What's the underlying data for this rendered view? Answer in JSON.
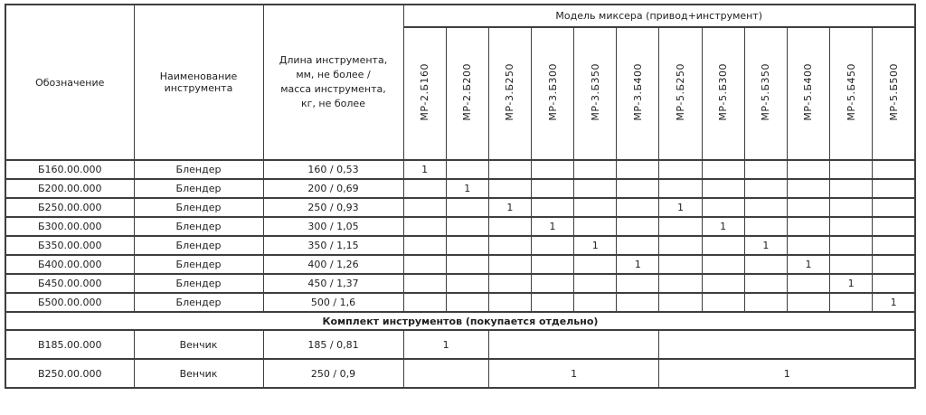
{
  "table": {
    "headers": {
      "designation": "Обозначение",
      "instrument_name": "Наименование инструмента",
      "length_mass": "Длина инструмента,\nмм, не более /\nмасса инструмента,\nкг, не более",
      "mixer_model_group": "Модель миксера (привод+инструмент)",
      "models": [
        "МР-2.Б160",
        "МР-2.Б200",
        "МР-3.Б250",
        "МР-3.Б300",
        "МР-3.Б350",
        "МР-3.Б400",
        "МР-5.Б250",
        "МР-5.Б300",
        "МР-5.Б350",
        "МР-5.Б400",
        "МР-5.Б450",
        "МР-5.Б500"
      ]
    },
    "blender_rows": [
      {
        "code": "Б160.00.000",
        "name": "Блендер",
        "size": "160 / 0,53",
        "marks": [
          "1",
          "",
          "",
          "",
          "",
          "",
          "",
          "",
          "",
          "",
          "",
          ""
        ]
      },
      {
        "code": "Б200.00.000",
        "name": "Блендер",
        "size": "200 / 0,69",
        "marks": [
          "",
          "1",
          "",
          "",
          "",
          "",
          "",
          "",
          "",
          "",
          "",
          ""
        ]
      },
      {
        "code": "Б250.00.000",
        "name": "Блендер",
        "size": "250 / 0,93",
        "marks": [
          "",
          "",
          "1",
          "",
          "",
          "",
          "1",
          "",
          "",
          "",
          "",
          ""
        ]
      },
      {
        "code": "Б300.00.000",
        "name": "Блендер",
        "size": "300 / 1,05",
        "marks": [
          "",
          "",
          "",
          "1",
          "",
          "",
          "",
          "1",
          "",
          "",
          "",
          ""
        ]
      },
      {
        "code": "Б350.00.000",
        "name": "Блендер",
        "size": "350 / 1,15",
        "marks": [
          "",
          "",
          "",
          "",
          "1",
          "",
          "",
          "",
          "1",
          "",
          "",
          ""
        ]
      },
      {
        "code": "Б400.00.000",
        "name": "Блендер",
        "size": "400 / 1,26",
        "marks": [
          "",
          "",
          "",
          "",
          "",
          "1",
          "",
          "",
          "",
          "1",
          "",
          ""
        ]
      },
      {
        "code": "Б450.00.000",
        "name": "Блендер",
        "size": "450 / 1,37",
        "marks": [
          "",
          "",
          "",
          "",
          "",
          "",
          "",
          "",
          "",
          "",
          "1",
          ""
        ]
      },
      {
        "code": "Б500.00.000",
        "name": "Блендер",
        "size": "500 / 1,6",
        "marks": [
          "",
          "",
          "",
          "",
          "",
          "",
          "",
          "",
          "",
          "",
          "",
          "1"
        ]
      }
    ],
    "section_row": "Комплект инструментов (покупается отдельно)",
    "whisk_rows": [
      {
        "code": "В185.00.000",
        "name": "Венчик",
        "size": "185 / 0,81",
        "group_marks": [
          "1",
          "",
          ""
        ]
      },
      {
        "code": "В250.00.000",
        "name": "Венчик",
        "size": "250 / 0,9",
        "group_marks": [
          "",
          "1",
          "1"
        ]
      }
    ],
    "whisk_group_spans": [
      2,
      4,
      6
    ]
  }
}
